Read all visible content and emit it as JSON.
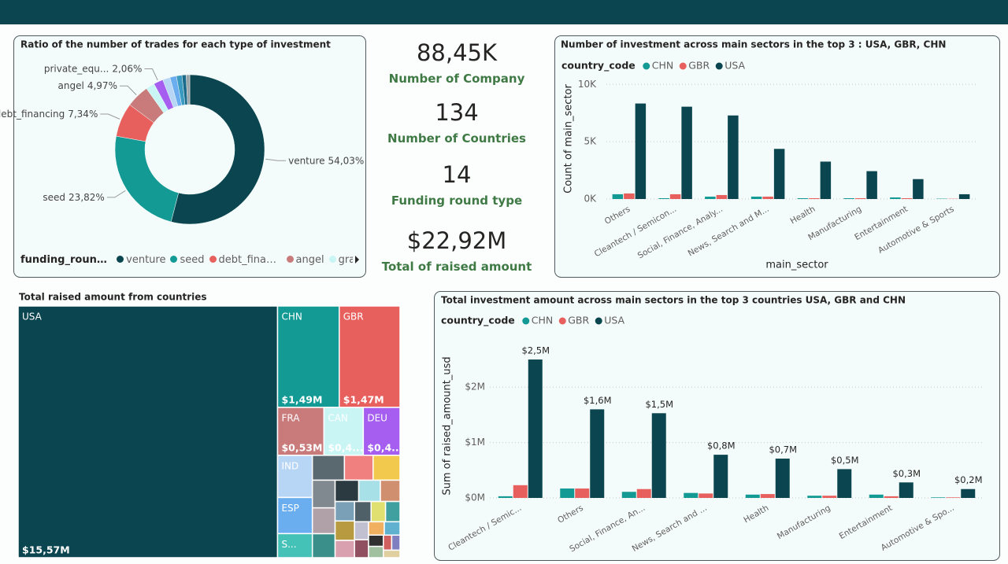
{
  "cards": [
    {
      "value": "88,45K",
      "label": "Number of Company"
    },
    {
      "value": "134",
      "label": "Number of Countries"
    },
    {
      "value": "14",
      "label": "Funding round type"
    },
    {
      "value": "$22,92M",
      "label": "Total of raised amount"
    }
  ],
  "chart_data": [
    {
      "type": "pie",
      "title": "Ratio of the number of trades for each type of investment",
      "legend_title": "funding_round...",
      "categories": [
        "venture",
        "seed",
        "debt_financing",
        "angel",
        "grant",
        "private_equ...",
        null,
        null,
        null,
        null,
        null
      ],
      "values": [
        54.03,
        23.82,
        7.34,
        4.97,
        1.9,
        2.06,
        1.6,
        1.4,
        1.2,
        0.9,
        0.78
      ],
      "value_labels": [
        "54,03%",
        "23,82%",
        "7,34%",
        "4,97%",
        null,
        "2,06%",
        null,
        null,
        null,
        null,
        null
      ],
      "colors": [
        "#0b4650",
        "#139a94",
        "#e8605e",
        "#c97b7b",
        "#c9f5f5",
        "#a55ef0",
        "#b7d6f5",
        "#6aaef0",
        "#3a9ac0",
        "#1c6b8a",
        "#9aa4a8"
      ]
    },
    {
      "type": "bar",
      "title": "Number of investment across main sectors in the top 3 : USA, GBR, CHN",
      "legend_title": "country_code",
      "x_label": "main_sector",
      "y_label": "Count of main_sector",
      "categories": [
        "Others",
        "Cleantech / Semicon...",
        "Social, Finance, Analy...",
        "News, Search and M...",
        "Health",
        "Manufacturing",
        "Entertainment",
        "Automotive & Sports"
      ],
      "ylim": [
        0,
        10500
      ],
      "yticks": [
        {
          "value": 0,
          "label": "0K"
        },
        {
          "value": 5000,
          "label": "5K"
        },
        {
          "value": 10000,
          "label": "10K"
        }
      ],
      "grid": true,
      "series": [
        {
          "name": "CHN",
          "color": "#139a94",
          "values": [
            417,
            70,
            208,
            208,
            70,
            70,
            140,
            30
          ]
        },
        {
          "name": "GBR",
          "color": "#e8605e",
          "values": [
            486,
            417,
            347,
            208,
            70,
            70,
            70,
            20
          ]
        },
        {
          "name": "USA",
          "color": "#0b4650",
          "values": [
            8333,
            8055,
            7290,
            4375,
            3264,
            2430,
            1736,
            417
          ]
        }
      ]
    },
    {
      "type": "treemap",
      "title": "Total raised amount from countries",
      "categories": [
        "USA",
        "CHN",
        "GBR",
        "FRA",
        "CAN",
        "DEU",
        "IND",
        "ESP",
        "S...",
        null,
        null,
        null,
        null,
        null,
        null,
        null,
        null,
        null,
        null,
        null,
        null,
        null,
        null,
        null,
        null,
        null,
        null,
        null,
        null,
        null,
        null,
        null,
        null
      ],
      "values": [
        15.57,
        1.49,
        1.47,
        0.53,
        0.45,
        0.42,
        0.35,
        0.3,
        0.2,
        0.19,
        0.17,
        0.16,
        0.15,
        0.14,
        0.13,
        0.12,
        0.11,
        0.1,
        0.09,
        0.09,
        0.08,
        0.08,
        0.07,
        0.07,
        0.06,
        0.06,
        0.05,
        0.05,
        0.04,
        0.04,
        0.03,
        0.03,
        0.03
      ],
      "value_labels": [
        "$15,57M",
        "$1,49M",
        "$1,47M",
        "$0,53M",
        "$0,4...",
        "$0,4...",
        null,
        null,
        null,
        null,
        null,
        null,
        null,
        null,
        null,
        null,
        null,
        null,
        null,
        null,
        null,
        null,
        null,
        null,
        null,
        null,
        null,
        null,
        null,
        null,
        null,
        null,
        null
      ],
      "colors": [
        "#0b4650",
        "#139a94",
        "#e8605e",
        "#c97b7b",
        "#c9f5f5",
        "#a55ef0",
        "#b7d6f5",
        "#6aaef0",
        "#44c2b8",
        "#5a6870",
        "#f08080",
        "#f2c94c",
        "#808890",
        "#b0a0a8",
        "#3a8f8a",
        "#2a3a40",
        "#a8e0e8",
        "#d09070",
        "#7aa0b8",
        "#b89a40",
        "#d9a0b0",
        "#506068",
        "#e0e070",
        "#40a0a0",
        "#c0c0d0",
        "#905060",
        "#f0b060",
        "#60b0d0",
        "#303030",
        "#a0c0a0",
        "#d06060",
        "#8080c0",
        "#e0d0a0"
      ]
    },
    {
      "type": "bar",
      "title": "Total investment amount across main sectors in the top 3 countries USA, GBR and CHN",
      "legend_title": "country_code",
      "y_label": "Sum of raised_amount_usd",
      "categories": [
        "Cleantech / Semic...",
        "Others",
        "Social, Finance, An...",
        "News, Search and ...",
        "Health",
        "Manufacturing",
        "Entertainment",
        "Automotive & Spo..."
      ],
      "ylim": [
        0,
        2.6
      ],
      "yticks": [
        {
          "value": 0,
          "label": "$0M"
        },
        {
          "value": 1,
          "label": "$1M"
        },
        {
          "value": 2,
          "label": "$2M"
        }
      ],
      "grid": true,
      "series": [
        {
          "name": "CHN",
          "color": "#139a94",
          "values": [
            0.03,
            0.17,
            0.11,
            0.09,
            0.06,
            0.04,
            0.06,
            0.01
          ]
        },
        {
          "name": "GBR",
          "color": "#e8605e",
          "values": [
            0.23,
            0.17,
            0.16,
            0.08,
            0.07,
            0.04,
            0.03,
            0.01
          ]
        },
        {
          "name": "USA",
          "color": "#0b4650",
          "values": [
            2.5,
            1.6,
            1.53,
            0.78,
            0.71,
            0.52,
            0.28,
            0.16
          ],
          "value_labels": [
            "$2,5M",
            "$1,6M",
            "$1,5M",
            "$0,8M",
            "$0,7M",
            "$0,5M",
            "$0,3M",
            "$0,2M"
          ]
        }
      ]
    }
  ]
}
